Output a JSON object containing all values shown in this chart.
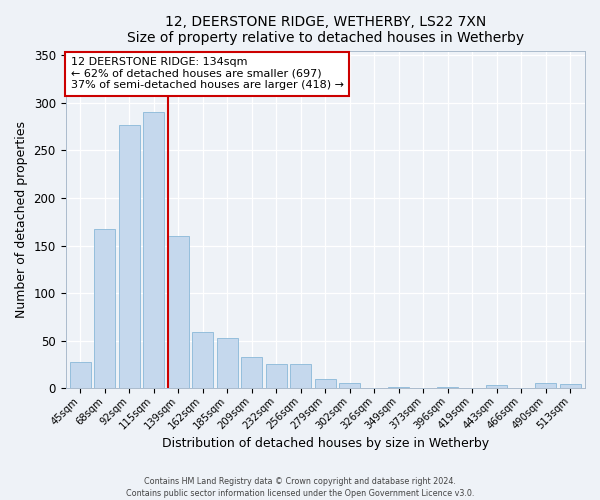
{
  "title": "12, DEERSTONE RIDGE, WETHERBY, LS22 7XN",
  "subtitle": "Size of property relative to detached houses in Wetherby",
  "xlabel": "Distribution of detached houses by size in Wetherby",
  "ylabel": "Number of detached properties",
  "bar_labels": [
    "45sqm",
    "68sqm",
    "92sqm",
    "115sqm",
    "139sqm",
    "162sqm",
    "185sqm",
    "209sqm",
    "232sqm",
    "256sqm",
    "279sqm",
    "302sqm",
    "326sqm",
    "349sqm",
    "373sqm",
    "396sqm",
    "419sqm",
    "443sqm",
    "466sqm",
    "490sqm",
    "513sqm"
  ],
  "bar_values": [
    28,
    167,
    277,
    290,
    160,
    59,
    53,
    33,
    25,
    25,
    10,
    5,
    0,
    1,
    0,
    1,
    0,
    3,
    0,
    5,
    4
  ],
  "bar_color": "#c5d8ed",
  "bar_edgecolor": "#8ab8d8",
  "vline_color": "#cc0000",
  "annotation_title": "12 DEERSTONE RIDGE: 134sqm",
  "annotation_line1": "← 62% of detached houses are smaller (697)",
  "annotation_line2": "37% of semi-detached houses are larger (418) →",
  "annotation_box_color": "#ffffff",
  "annotation_box_edgecolor": "#cc0000",
  "ylim": [
    0,
    355
  ],
  "yticks": [
    0,
    50,
    100,
    150,
    200,
    250,
    300,
    350
  ],
  "background_color": "#eef2f7",
  "grid_color": "#ffffff",
  "footer_line1": "Contains HM Land Registry data © Crown copyright and database right 2024.",
  "footer_line2": "Contains public sector information licensed under the Open Government Licence v3.0."
}
